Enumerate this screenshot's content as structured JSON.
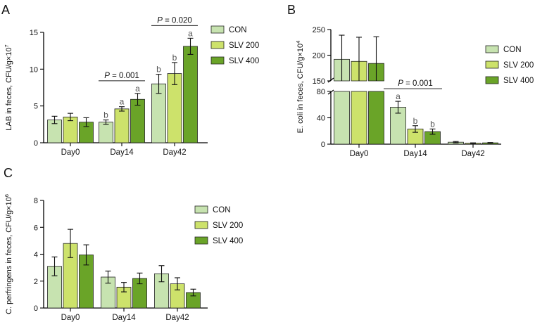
{
  "series_colors": [
    "#c7e3b0",
    "#cde26b",
    "#6aa428"
  ],
  "legend": [
    "CON",
    "SLV 200",
    "SLV 400"
  ],
  "chart_data": [
    {
      "panel": "A",
      "type": "bar",
      "ylabel_base": "LAB in feces, CFU/g×10",
      "ylabel_exp": "7",
      "categories": [
        "Day0",
        "Day14",
        "Day42"
      ],
      "ylim": [
        0,
        15
      ],
      "yticks": [
        0,
        5,
        10,
        15
      ],
      "series": [
        {
          "name": "CON",
          "values": [
            3.1,
            2.8,
            8.0
          ],
          "errors": [
            0.5,
            0.3,
            1.3
          ]
        },
        {
          "name": "SLV 200",
          "values": [
            3.5,
            4.6,
            9.4
          ],
          "errors": [
            0.5,
            0.3,
            1.5
          ]
        },
        {
          "name": "SLV 400",
          "values": [
            2.8,
            5.9,
            13.1
          ],
          "errors": [
            0.6,
            0.8,
            1.1
          ]
        }
      ],
      "letters": [
        [
          "",
          "",
          ""
        ],
        [
          "b",
          "a",
          "a"
        ],
        [
          "b",
          "b",
          "a"
        ]
      ],
      "pvalues": [
        {
          "category_index": 1,
          "label": "P",
          "value": " = 0.001"
        },
        {
          "category_index": 2,
          "label": "P",
          "value": " = 0.020"
        }
      ]
    },
    {
      "panel": "B",
      "type": "bar",
      "ylabel_base": "E. coli in feces, CFU/g×10",
      "ylabel_exp": "4",
      "categories": [
        "Day0",
        "Day14",
        "Day42"
      ],
      "axis_break": {
        "lower": [
          0,
          80
        ],
        "upper": [
          150,
          250
        ]
      },
      "yticks_lower": [
        0,
        40,
        80
      ],
      "yticks_upper": [
        150,
        200,
        250
      ],
      "series": [
        {
          "name": "CON",
          "values": [
            192,
            56,
            3
          ],
          "errors": [
            47,
            9,
            1
          ]
        },
        {
          "name": "SLV 200",
          "values": [
            188,
            23,
            1.5
          ],
          "errors": [
            47,
            5,
            0.5
          ]
        },
        {
          "name": "SLV 400",
          "values": [
            184,
            19,
            2
          ],
          "errors": [
            52,
            4,
            0.5
          ]
        }
      ],
      "letters": [
        [
          "",
          "",
          ""
        ],
        [
          "a",
          "b",
          "b"
        ],
        [
          "",
          "",
          ""
        ]
      ],
      "pvalues": [
        {
          "category_index": 1,
          "label": "P",
          "value": " = 0.001"
        }
      ]
    },
    {
      "panel": "C",
      "type": "bar",
      "ylabel_base": "C. perfringens in feces, CFU/g×10",
      "ylabel_exp": "6",
      "categories": [
        "Day0",
        "Day14",
        "Day42"
      ],
      "ylim": [
        0,
        8
      ],
      "yticks": [
        0,
        2,
        4,
        6,
        8
      ],
      "series": [
        {
          "name": "CON",
          "values": [
            3.1,
            2.3,
            2.55
          ],
          "errors": [
            0.7,
            0.45,
            0.6
          ]
        },
        {
          "name": "SLV 200",
          "values": [
            4.8,
            1.55,
            1.8
          ],
          "errors": [
            1.05,
            0.35,
            0.45
          ]
        },
        {
          "name": "SLV 400",
          "values": [
            3.95,
            2.2,
            1.15
          ],
          "errors": [
            0.75,
            0.4,
            0.25
          ]
        }
      ],
      "letters": [
        [
          "",
          "",
          ""
        ],
        [
          "",
          "",
          ""
        ],
        [
          "",
          "",
          ""
        ]
      ],
      "pvalues": []
    }
  ]
}
